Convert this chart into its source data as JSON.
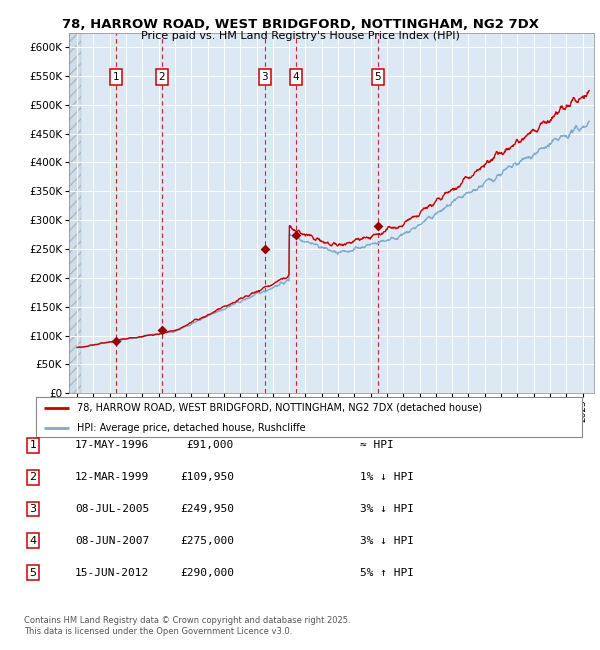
{
  "title1": "78, HARROW ROAD, WEST BRIDGFORD, NOTTINGHAM, NG2 7DX",
  "title2": "Price paid vs. HM Land Registry's House Price Index (HPI)",
  "ylim": [
    0,
    625000
  ],
  "bg_color": "#dce9f5",
  "red_line_color": "#cc0000",
  "blue_line_color": "#7faacc",
  "marker_color": "#990000",
  "dashed_line_color": "#cc0000",
  "sale_points": [
    {
      "year": 1996.37,
      "price": 91000,
      "label": "1"
    },
    {
      "year": 1999.19,
      "price": 109950,
      "label": "2"
    },
    {
      "year": 2005.51,
      "price": 249950,
      "label": "3"
    },
    {
      "year": 2007.43,
      "price": 275000,
      "label": "4"
    },
    {
      "year": 2012.45,
      "price": 290000,
      "label": "5"
    }
  ],
  "legend_red": "78, HARROW ROAD, WEST BRIDGFORD, NOTTINGHAM, NG2 7DX (detached house)",
  "legend_blue": "HPI: Average price, detached house, Rushcliffe",
  "table_rows": [
    [
      "1",
      "17-MAY-1996",
      "£91,000",
      "≈ HPI"
    ],
    [
      "2",
      "12-MAR-1999",
      "£109,950",
      "1% ↓ HPI"
    ],
    [
      "3",
      "08-JUL-2005",
      "£249,950",
      "3% ↓ HPI"
    ],
    [
      "4",
      "08-JUN-2007",
      "£275,000",
      "3% ↓ HPI"
    ],
    [
      "5",
      "15-JUN-2012",
      "£290,000",
      "5% ↑ HPI"
    ]
  ],
  "footer": "Contains HM Land Registry data © Crown copyright and database right 2025.\nThis data is licensed under the Open Government Licence v3.0."
}
